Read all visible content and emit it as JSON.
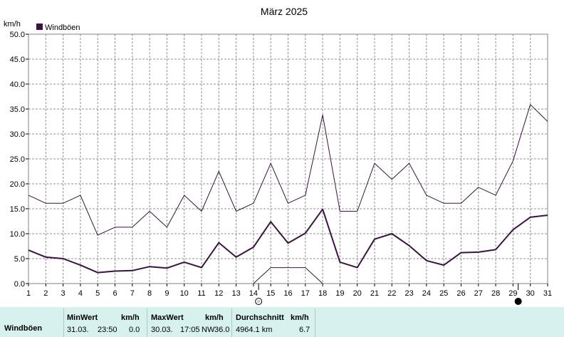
{
  "chart_data": {
    "type": "line",
    "title": "März 2025",
    "ylabel": "km/h",
    "ylim": [
      0,
      50
    ],
    "y_ticks": [
      "0.0",
      "5.0",
      "10.0",
      "15.0",
      "20.0",
      "25.0",
      "30.0",
      "35.0",
      "40.0",
      "45.0",
      "50.0"
    ],
    "x": [
      1,
      2,
      3,
      4,
      5,
      6,
      7,
      8,
      9,
      10,
      11,
      12,
      13,
      14,
      15,
      16,
      17,
      18,
      19,
      20,
      21,
      22,
      23,
      24,
      25,
      26,
      27,
      28,
      29,
      30,
      31
    ],
    "grid": true,
    "legend": {
      "entries": [
        "Windböen"
      ],
      "color": "#3a1340",
      "position": "top-left"
    },
    "series": [
      {
        "name": "Windböen",
        "role": "max",
        "color": "#3a1340",
        "values": [
          17.7,
          16.1,
          16.1,
          17.7,
          9.7,
          11.3,
          11.3,
          14.5,
          11.3,
          17.7,
          14.5,
          22.5,
          14.5,
          16.1,
          24.1,
          16.1,
          17.7,
          33.8,
          14.5,
          14.5,
          24.1,
          20.9,
          24.1,
          17.7,
          16.1,
          16.1,
          19.3,
          17.7,
          24.6,
          35.9,
          32.5
        ]
      },
      {
        "role": "mean",
        "color": "#3a1340",
        "values": [
          6.7,
          5.3,
          5.0,
          3.7,
          2.2,
          2.5,
          2.6,
          3.4,
          3.1,
          4.3,
          3.2,
          8.2,
          5.3,
          7.3,
          12.4,
          8.1,
          10.1,
          14.9,
          4.3,
          3.2,
          8.9,
          10.0,
          7.6,
          4.6,
          3.7,
          6.2,
          6.3,
          6.8,
          10.8,
          13.3,
          13.7
        ]
      },
      {
        "role": "min",
        "color": "#3a1340",
        "values": [
          null,
          null,
          null,
          null,
          null,
          null,
          null,
          null,
          null,
          null,
          null,
          null,
          null,
          0.0,
          3.2,
          3.2,
          3.2,
          0.0,
          null,
          null,
          null,
          null,
          null,
          null,
          null,
          null,
          null,
          null,
          null,
          null,
          null
        ]
      }
    ],
    "moon_markers": [
      {
        "day": 14,
        "phase": "full-moon",
        "offset": 0.3
      },
      {
        "day": 29,
        "phase": "new-moon",
        "offset": 0.3
      }
    ]
  },
  "footer": {
    "row_label": "Windböen",
    "min": {
      "header": "MinWert",
      "unit": "km/h",
      "date": "31.03.",
      "time": "23:50",
      "value": "0.0"
    },
    "max": {
      "header": "MaxWert",
      "unit": "km/h",
      "date": "30.03.",
      "time": "17:05",
      "dir": "NW",
      "value": "36.0"
    },
    "avg": {
      "header": "Durchschnitt",
      "unit": "km/h",
      "distance": "4964.1 km",
      "value": "6.7"
    }
  }
}
